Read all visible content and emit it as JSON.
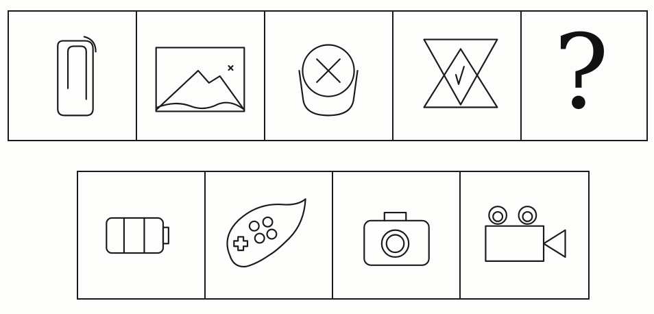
{
  "question_figures": [
    {
      "id": 1,
      "icon": "paperclip-icon"
    },
    {
      "id": 2,
      "icon": "image-icon"
    },
    {
      "id": 3,
      "icon": "circle-x-capsule-icon"
    },
    {
      "id": 4,
      "icon": "hourglass-triangles-icon"
    },
    {
      "id": 5,
      "icon": "question-mark",
      "text": "?"
    }
  ],
  "options": [
    {
      "id": "A",
      "icon": "battery-icon"
    },
    {
      "id": "B",
      "icon": "gamepad-icon"
    },
    {
      "id": "C",
      "icon": "camera-icon"
    },
    {
      "id": "D",
      "icon": "video-camera-icon"
    }
  ]
}
